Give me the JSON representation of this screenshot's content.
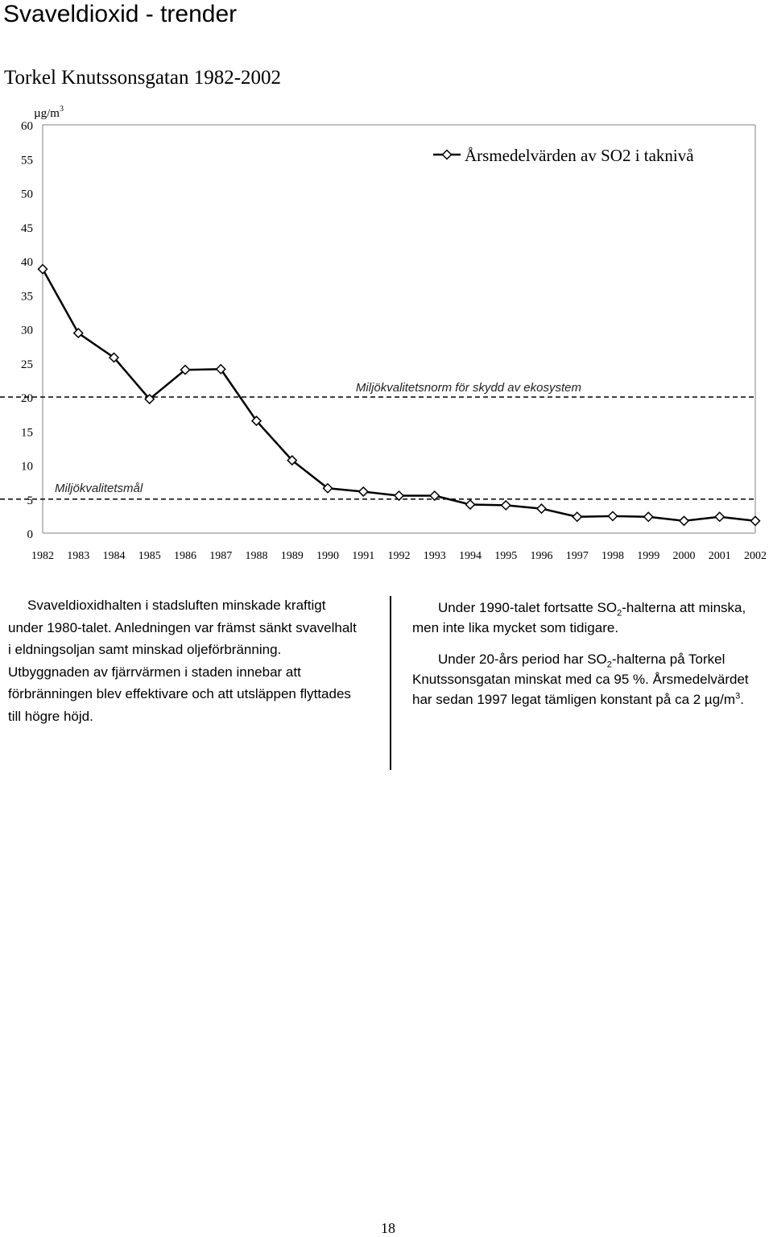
{
  "page": {
    "title": "Svaveldioxid - trender",
    "page_number": "18"
  },
  "chart_data": {
    "type": "line",
    "title": "Torkel Knutssonsgatan 1982-2002",
    "ylabel": "µg/m",
    "ylabel_sup": "3",
    "xlabel": "",
    "ylim": [
      0,
      60
    ],
    "yticks": [
      0,
      5,
      10,
      15,
      20,
      25,
      30,
      35,
      40,
      45,
      50,
      55,
      60
    ],
    "grid": false,
    "legend_position": "top-right",
    "categories": [
      "1982",
      "1983",
      "1984",
      "1985",
      "1986",
      "1987",
      "1988",
      "1989",
      "1990",
      "1991",
      "1992",
      "1993",
      "1994",
      "1995",
      "1996",
      "1997",
      "1998",
      "1999",
      "2000",
      "2001",
      "2002"
    ],
    "series": [
      {
        "name": "Årsmedelvärden av SO2 i taknivå",
        "color": "#000000",
        "values": [
          38.8,
          29.4,
          25.8,
          19.7,
          24.0,
          24.1,
          16.5,
          10.7,
          6.6,
          6.1,
          5.5,
          5.5,
          4.2,
          4.1,
          3.6,
          2.4,
          2.5,
          2.4,
          1.8,
          2.4,
          1.8
        ]
      }
    ],
    "reference_lines": [
      {
        "label": "Miljökvalitetsnorm för skydd av ekosystem",
        "value": 20
      },
      {
        "label": "Miljökvalitetsmål",
        "value": 5
      }
    ]
  },
  "text": {
    "left_paragraph": "Svaveldioxidhalten i stadsluften minskade kraf­tigt under 1980-talet. Anledningen var främst sänkt svavelhalt i eldningsoljan samt minskad oljeförbrän­ning. Utbyggnaden av fjärrvärmen i staden innebar att förbränningen blev effektivare och att utsläppen flyttades till högre höjd.",
    "right_p1_a": "Under 1990-talet fortsatte SO",
    "right_p1_sub": "2",
    "right_p1_b": "-halterna att mins­ka, men inte lika mycket som tidigare.",
    "right_p2_a": "Under 20-års period har SO",
    "right_p2_sub": "2",
    "right_p2_b": "-halterna på Torkel Knutssonsgatan minskat med ca 95 %. Årsmedel­värdet har sedan 1997 legat tämligen konstant på ca 2 µg/m",
    "right_p2_sup": "3",
    "right_p2_c": "."
  }
}
